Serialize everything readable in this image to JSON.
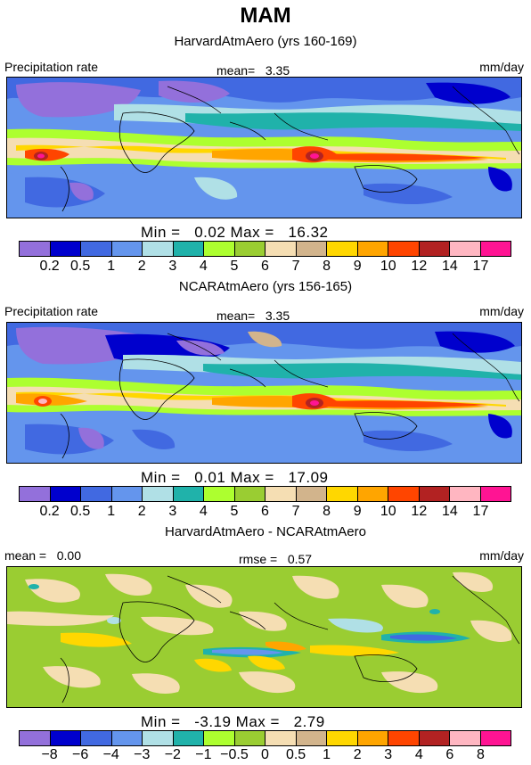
{
  "title": "MAM",
  "panels": [
    {
      "id": "harvard",
      "subtitle": "HarvardAtmAero (yrs 160-169)",
      "left_label": "Precipitation rate",
      "center_label": "mean=   3.35",
      "right_label": "mm/day",
      "minmax": "Min =   0.02 Max =   16.32",
      "colorbar": {
        "colors": [
          "#9370db",
          "#0000cd",
          "#4169e1",
          "#6495ed",
          "#b0e0e6",
          "#20b2aa",
          "#adff2f",
          "#9acd32",
          "#f5deb3",
          "#d2b48c",
          "#ffd700",
          "#ffa500",
          "#ff4500",
          "#b22222",
          "#ffb6c1",
          "#ff1493"
        ],
        "labels": [
          "0.2",
          "0.5",
          "1",
          "2",
          "3",
          "4",
          "5",
          "6",
          "7",
          "8",
          "9",
          "10",
          "12",
          "14",
          "17"
        ]
      }
    },
    {
      "id": "ncar",
      "subtitle": "NCARAtmAero (yrs 156-165)",
      "left_label": "Precipitation rate",
      "center_label": "mean=   3.35",
      "right_label": "mm/day",
      "minmax": "Min =   0.01 Max =   17.09",
      "colorbar": {
        "colors": [
          "#9370db",
          "#0000cd",
          "#4169e1",
          "#6495ed",
          "#b0e0e6",
          "#20b2aa",
          "#adff2f",
          "#9acd32",
          "#f5deb3",
          "#d2b48c",
          "#ffd700",
          "#ffa500",
          "#ff4500",
          "#b22222",
          "#ffb6c1",
          "#ff1493"
        ],
        "labels": [
          "0.2",
          "0.5",
          "1",
          "2",
          "3",
          "4",
          "5",
          "6",
          "7",
          "8",
          "9",
          "10",
          "12",
          "14",
          "17"
        ]
      }
    },
    {
      "id": "diff",
      "subtitle": "HarvardAtmAero - NCARAtmAero",
      "left_label": "mean =   0.00",
      "center_label": "rmse =   0.57",
      "right_label": "mm/day",
      "minmax": "Min =   -3.19 Max =   2.79",
      "colorbar": {
        "colors": [
          "#9370db",
          "#0000cd",
          "#4169e1",
          "#6495ed",
          "#b0e0e6",
          "#20b2aa",
          "#adff2f",
          "#9acd32",
          "#f5deb3",
          "#d2b48c",
          "#ffd700",
          "#ffa500",
          "#ff4500",
          "#b22222",
          "#ffb6c1",
          "#ff1493"
        ],
        "labels": [
          "−8",
          "−6",
          "−4",
          "−3",
          "−2",
          "−1",
          "−0.5",
          "0",
          "0.5",
          "1",
          "2",
          "3",
          "4",
          "6",
          "8"
        ]
      }
    }
  ]
}
